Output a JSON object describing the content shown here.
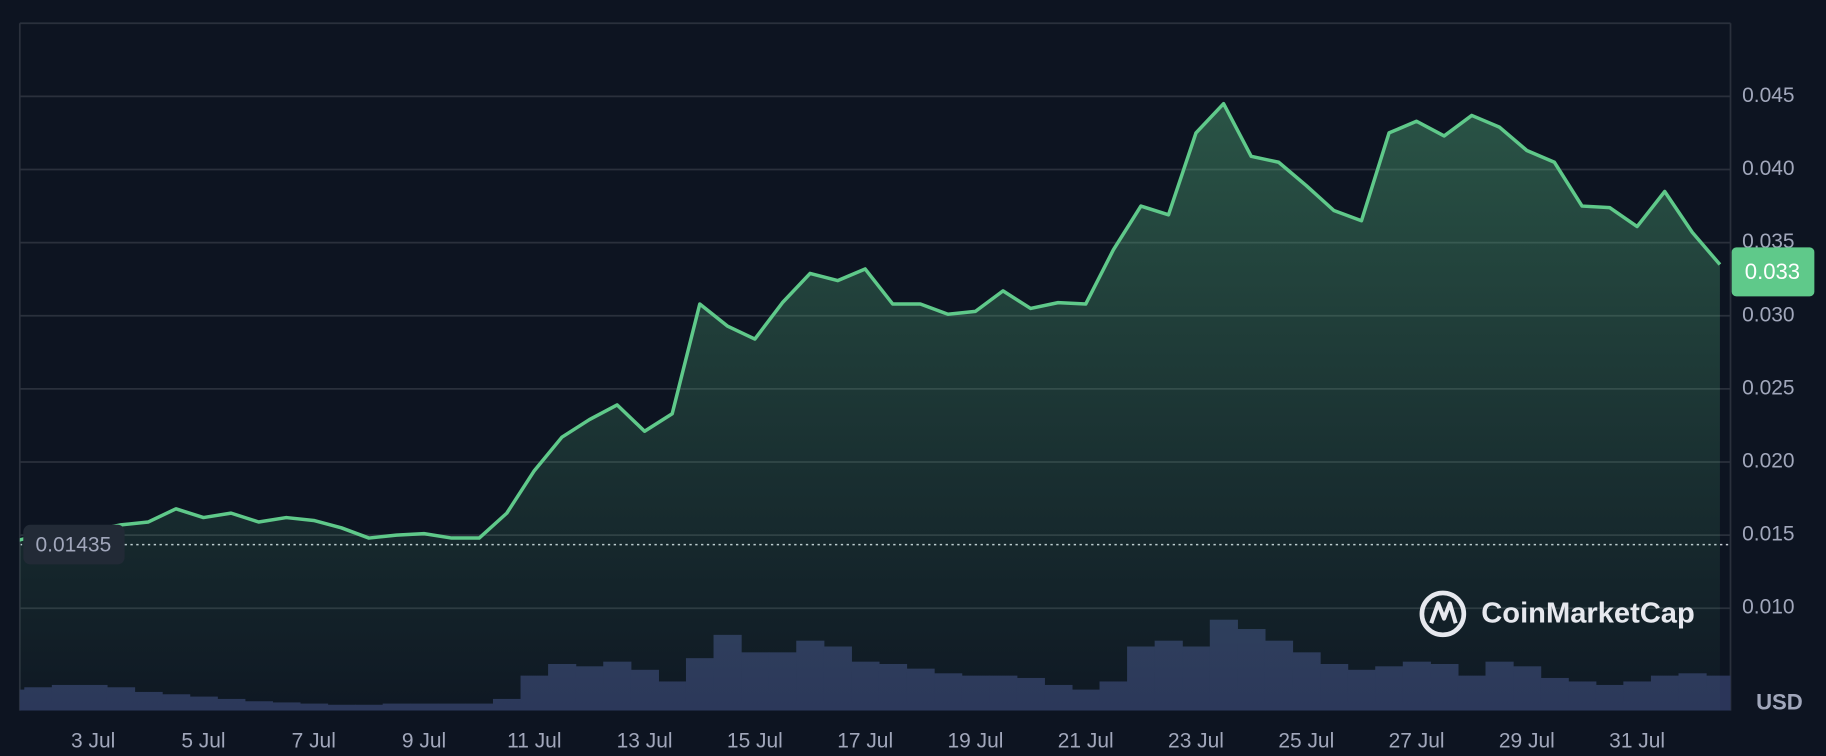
{
  "chart_data": {
    "type": "line",
    "x": [
      null,
      null,
      null,
      "3 Jul",
      null,
      null,
      null,
      "5 Jul",
      null,
      null,
      null,
      "7 Jul",
      null,
      null,
      null,
      "9 Jul",
      null,
      null,
      null,
      "11 Jul",
      null,
      null,
      null,
      "13 Jul",
      null,
      null,
      null,
      "15 Jul",
      null,
      null,
      null,
      "17 Jul",
      null,
      null,
      null,
      "19 Jul",
      null,
      null,
      null,
      "21 Jul",
      null,
      null,
      null,
      "23 Jul",
      null,
      null,
      null,
      "25 Jul",
      null,
      null,
      null,
      "27 Jul",
      null,
      null,
      null,
      "29 Jul",
      null,
      null,
      null,
      "31 Jul",
      null,
      null,
      null
    ],
    "series": [
      {
        "color": "#5fc98a",
        "values": [
          0.0145,
          0.015,
          0.0155,
          0.0153,
          0.0157,
          0.0159,
          0.0168,
          0.0162,
          0.0165,
          0.0159,
          0.0162,
          0.016,
          0.0155,
          0.0148,
          0.015,
          0.0151,
          0.0148,
          0.0148,
          0.0165,
          0.0194,
          0.0217,
          0.0229,
          0.0239,
          0.0221,
          0.0233,
          0.0308,
          0.0293,
          0.0284,
          0.0309,
          0.0329,
          0.0324,
          0.0332,
          0.0308,
          0.0308,
          0.0301,
          0.0303,
          0.0317,
          0.0305,
          0.0309,
          0.0308,
          0.0345,
          0.0375,
          0.0369,
          0.0425,
          0.0445,
          0.0409,
          0.0405,
          0.0389,
          0.0372,
          0.0365,
          0.0425,
          0.0433,
          0.0423,
          0.0437,
          0.0429,
          0.0413,
          0.0405,
          0.0375,
          0.0374,
          0.0361,
          0.0385,
          0.0357,
          0.0335
        ]
      },
      {
        "type": "bar",
        "axis": "y2",
        "color": "#2b3559",
        "values": [
          18,
          20,
          22,
          22,
          20,
          16,
          14,
          12,
          10,
          8,
          7,
          6,
          5,
          5,
          6,
          6,
          6,
          6,
          10,
          30,
          40,
          38,
          42,
          35,
          25,
          45,
          65,
          50,
          50,
          60,
          55,
          42,
          40,
          36,
          32,
          30,
          30,
          28,
          22,
          18,
          25,
          55,
          60,
          55,
          78,
          70,
          60,
          50,
          40,
          35,
          38,
          42,
          40,
          30,
          42,
          38,
          28,
          25,
          22,
          25,
          30,
          32,
          30
        ]
      }
    ],
    "ylim": [
      0.003,
      0.05
    ],
    "yticks": [
      {
        "value": 0.01,
        "label": "0.010"
      },
      0.015,
      {
        "value": 0.02,
        "label": "0.020"
      },
      0.025,
      {
        "value": 0.03,
        "label": "0.030"
      },
      0.035,
      {
        "value": 0.04,
        "label": "0.040"
      },
      0.045
    ],
    "y2lim": [
      0,
      100
    ],
    "grid": true,
    "start_price": 0.01435,
    "current_price": 0.033,
    "currency": "USD",
    "brand": "CoinMarketCap"
  }
}
